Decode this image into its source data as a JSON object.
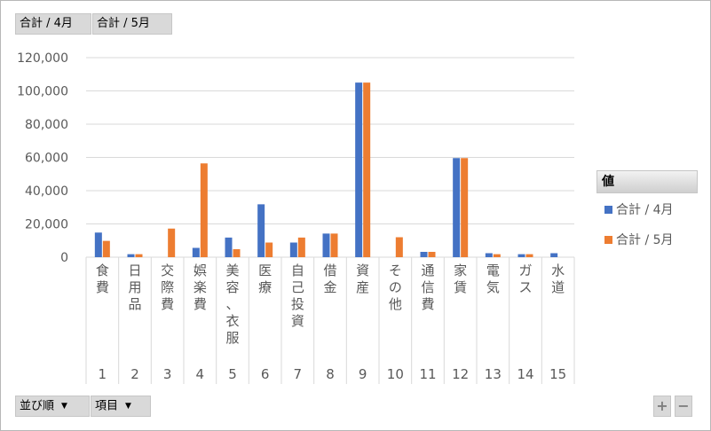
{
  "value_buttons": [
    "合計 / 4月",
    "合計 / 5月"
  ],
  "row_buttons": [
    {
      "label": "並び順",
      "arrow": "▼"
    },
    {
      "label": "項目",
      "arrow": "▼"
    }
  ],
  "zoom": {
    "plus": "+",
    "minus": "−"
  },
  "colors": {
    "series1": "#4472c4",
    "series2": "#ed7d31",
    "grid": "#d9d9d9",
    "axis_text": "#595959"
  },
  "chart_data": {
    "type": "bar",
    "title": "",
    "xlabel": "",
    "ylabel": "",
    "ylim": [
      0,
      120000
    ],
    "yticks": [
      "0",
      "20,000",
      "40,000",
      "60,000",
      "80,000",
      "100,000",
      "120,000"
    ],
    "grid": true,
    "legend_title": "値",
    "legend_position": "right",
    "categories": [
      "食費",
      "日用品",
      "交際費",
      "娯楽費",
      "美容、衣服",
      "医療",
      "自己投資",
      "借金",
      "資産",
      "その他",
      "通信費",
      "家賃",
      "電気",
      "ガス",
      "水道"
    ],
    "category_numbers": [
      "1",
      "2",
      "3",
      "4",
      "5",
      "6",
      "7",
      "8",
      "9",
      "10",
      "11",
      "12",
      "13",
      "14",
      "15"
    ],
    "series": [
      {
        "name": "合計 / 4月",
        "values": [
          14800,
          1800,
          0,
          5600,
          11800,
          31800,
          8800,
          14200,
          105000,
          0,
          3200,
          59600,
          2400,
          1800,
          2400
        ]
      },
      {
        "name": "合計 / 5月",
        "values": [
          9800,
          1800,
          17200,
          56400,
          4800,
          8800,
          11800,
          14200,
          105000,
          12000,
          3200,
          59600,
          1800,
          1800,
          0
        ]
      }
    ]
  }
}
